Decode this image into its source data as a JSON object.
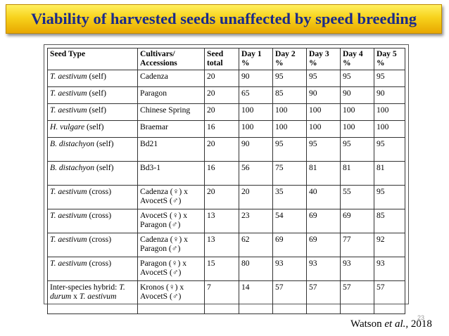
{
  "title": "Viability of harvested seeds unaffected by speed breeding",
  "table": {
    "headers": [
      "Seed Type",
      "Cultivars/ Accessions",
      "Seed total",
      "Day 1 %",
      "Day 2 %",
      "Day 3 %",
      "Day 4 %",
      "Day 5 %"
    ],
    "rows": [
      {
        "species": "T. aestivum",
        "suffix": " (self)",
        "cultivar": "Cadenza",
        "total": "20",
        "d1": "90",
        "d2": "95",
        "d3": "95",
        "d4": "95",
        "d5": "95"
      },
      {
        "species": "T. aestivum",
        "suffix": " (self)",
        "cultivar": "Paragon",
        "total": "20",
        "d1": "65",
        "d2": "85",
        "d3": "90",
        "d4": "90",
        "d5": "90"
      },
      {
        "species": "T. aestivum",
        "suffix": " (self)",
        "cultivar": "Chinese Spring",
        "total": "20",
        "d1": "100",
        "d2": "100",
        "d3": "100",
        "d4": "100",
        "d5": "100"
      },
      {
        "species": "H. vulgare",
        "suffix": " (self)",
        "cultivar": "Braemar",
        "total": "16",
        "d1": "100",
        "d2": "100",
        "d3": "100",
        "d4": "100",
        "d5": "100"
      },
      {
        "species": "B. distachyon",
        "suffix": " (self)",
        "cultivar": "Bd21",
        "total": "20",
        "d1": "90",
        "d2": "95",
        "d3": "95",
        "d4": "95",
        "d5": "95"
      },
      {
        "species": "B. distachyon",
        "suffix": " (self)",
        "cultivar": "Bd3-1",
        "total": "16",
        "d1": "56",
        "d2": "75",
        "d3": "81",
        "d4": "81",
        "d5": "81"
      },
      {
        "species": "T. aestivum",
        "suffix": " (cross)",
        "cultivar": "Cadenza (♀) x AvocetS (♂)",
        "total": "20",
        "d1": "20",
        "d2": "35",
        "d3": "40",
        "d4": "55",
        "d5": "95"
      },
      {
        "species": "T. aestivum",
        "suffix": " (cross)",
        "cultivar": "AvocetS (♀) x Paragon (♂)",
        "total": "13",
        "d1": "23",
        "d2": "54",
        "d3": "69",
        "d4": "69",
        "d5": "85"
      },
      {
        "species": "T. aestivum",
        "suffix": " (cross)",
        "cultivar": "Cadenza (♀) x Paragon (♂)",
        "total": "13",
        "d1": "62",
        "d2": "69",
        "d3": "69",
        "d4": "77",
        "d5": "92"
      },
      {
        "species": "T. aestivum",
        "suffix": " (cross)",
        "cultivar": "Paragon (♀) x AvocetS (♂)",
        "total": "15",
        "d1": "80",
        "d2": "93",
        "d3": "93",
        "d4": "93",
        "d5": "93"
      }
    ],
    "last_row": {
      "prefix": "Inter-species hybrid: ",
      "species_a": "T. durum",
      "mid": " x ",
      "species_b": "T. aestivum",
      "cultivar": "Kronos (♀) x AvocetS (♂)",
      "total": "7",
      "d1": "14",
      "d2": "57",
      "d3": "57",
      "d4": "57",
      "d5": "57"
    }
  },
  "slide_number": "23",
  "citation": {
    "author": "Watson ",
    "etal": "et al.,",
    "year": " 2018"
  }
}
